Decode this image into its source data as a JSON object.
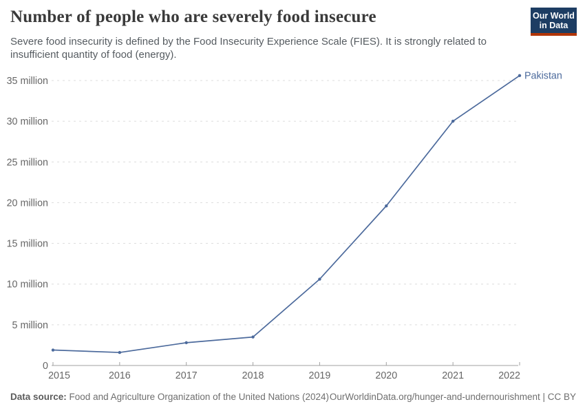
{
  "header": {
    "title": "Number of people who are severely food insecure",
    "subtitle_lines": [
      "Severe food insecurity is defined by the Food Insecurity Experience Scale (FIES). It is strongly related to",
      "insufficient quantity of food (energy)."
    ],
    "logo": {
      "line1": "Our World",
      "line2": "in Data"
    }
  },
  "colors": {
    "series_blue": "#4c6a9c",
    "logo_navy": "#1d3d63",
    "logo_red": "#b13507",
    "gridline": "#dcdcdc",
    "axis": "#a1a1a1",
    "tick_label": "#666666"
  },
  "chart_data": {
    "type": "line",
    "title": "Number of people who are severely food insecure",
    "unit": "million people",
    "x": [
      2015,
      2016,
      2017,
      2018,
      2019,
      2020,
      2021,
      2022
    ],
    "xtick_labels": [
      "2015",
      "2016",
      "2017",
      "2018",
      "2019",
      "2020",
      "2021",
      "2022"
    ],
    "series": [
      {
        "name": "Pakistan",
        "color": "#4c6a9c",
        "values": [
          1.9,
          1.6,
          2.8,
          3.5,
          10.6,
          19.6,
          30.0,
          35.6
        ]
      }
    ],
    "yticks": [
      {
        "value": 0,
        "label": "0"
      },
      {
        "value": 5,
        "label": "5 million"
      },
      {
        "value": 10,
        "label": "10 million"
      },
      {
        "value": 15,
        "label": "15 million"
      },
      {
        "value": 20,
        "label": "20 million"
      },
      {
        "value": 25,
        "label": "25 million"
      },
      {
        "value": 30,
        "label": "30 million"
      },
      {
        "value": 35,
        "label": "35 million"
      }
    ],
    "xlim": [
      2015,
      2022
    ],
    "ylim": [
      0,
      36.5
    ],
    "grid": "horizontal-dashed",
    "legend_position": "end-of-line"
  },
  "footer": {
    "datasource_bold": "Data source:",
    "datasource_text": "Food and Agriculture Organization of the United Nations (2024)",
    "credit": "OurWorldinData.org/hunger-and-undernourishment | CC BY"
  }
}
